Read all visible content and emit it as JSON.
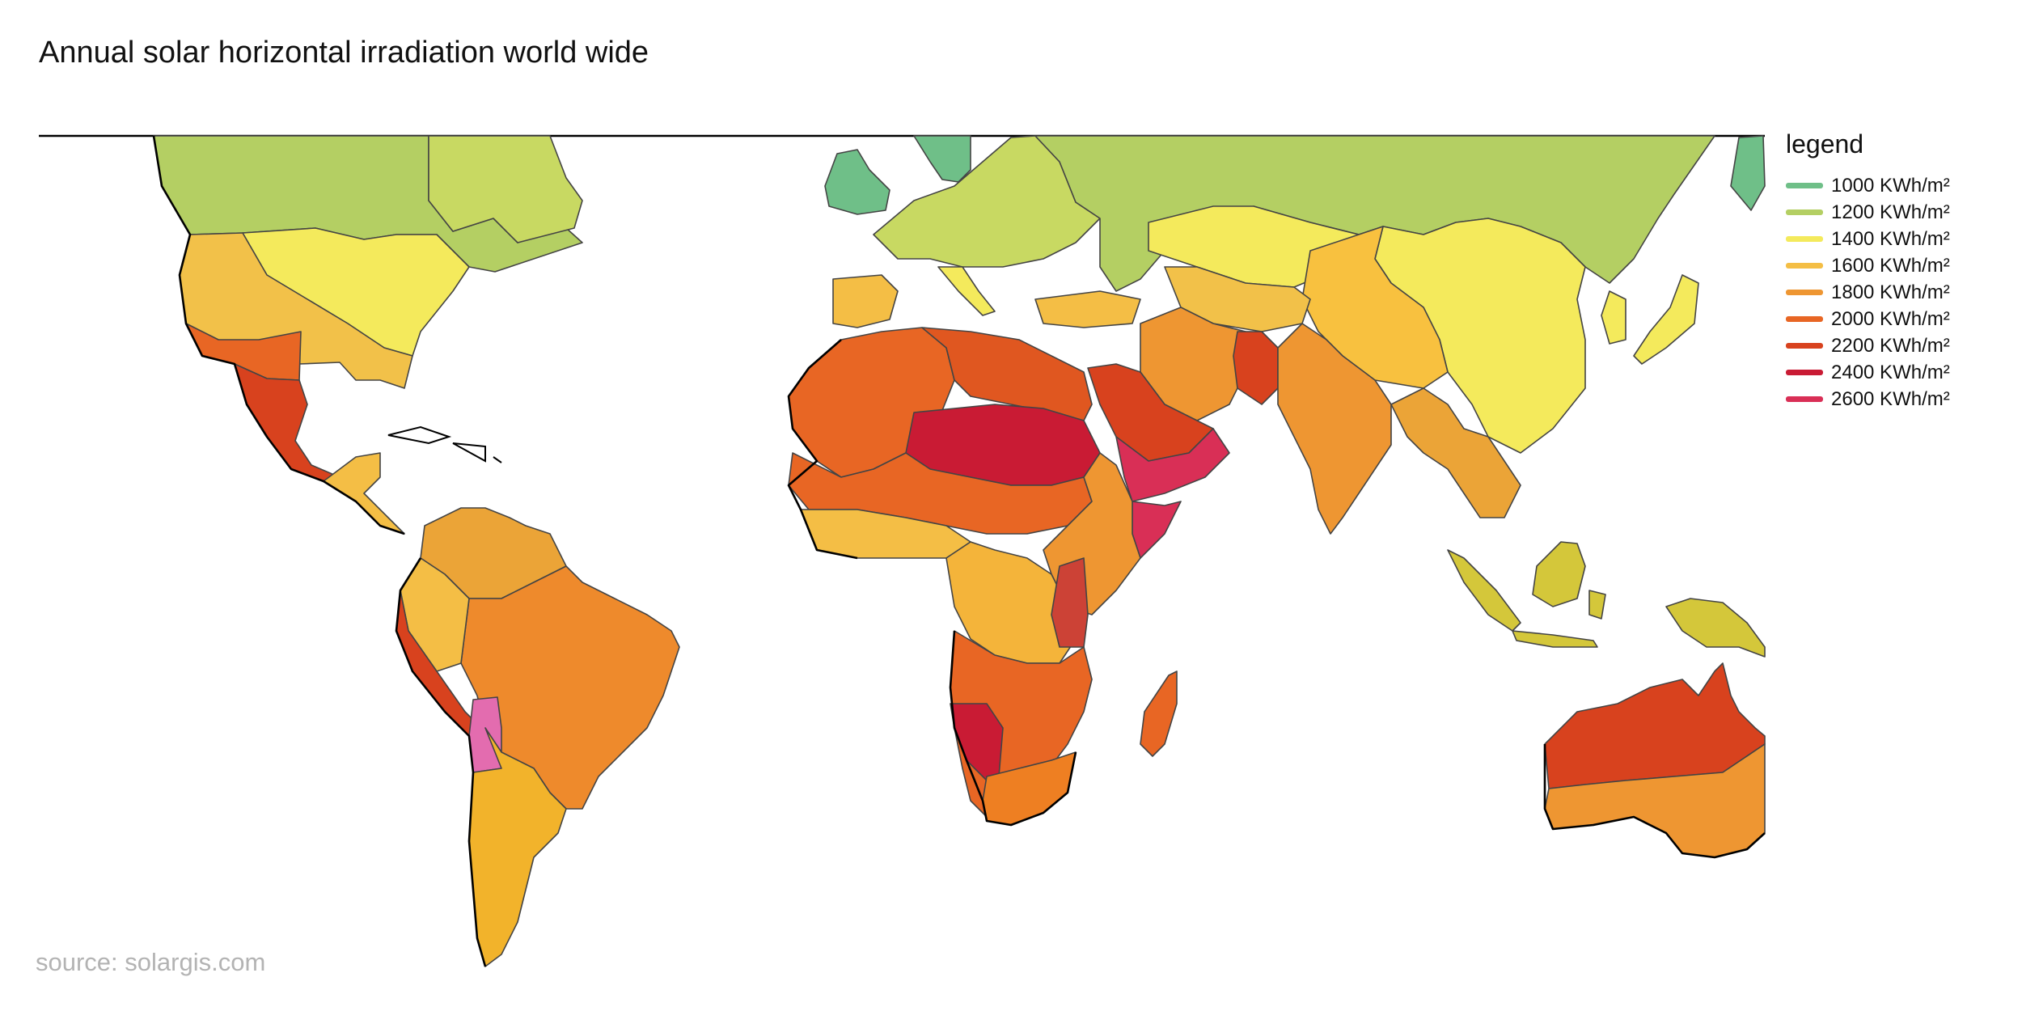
{
  "title": "Annual solar horizontal irradiation world wide",
  "legend": {
    "title": "legend",
    "items": [
      {
        "label": "1000 KWh/m²",
        "color": "#6fbf88"
      },
      {
        "label": "1200 KWh/m²",
        "color": "#b4cf63"
      },
      {
        "label": "1400 KWh/m²",
        "color": "#f4ea5c"
      },
      {
        "label": "1600 KWh/m²",
        "color": "#f4be45"
      },
      {
        "label": "1800 KWh/m²",
        "color": "#ee9632"
      },
      {
        "label": "2000 KWh/m²",
        "color": "#e86624"
      },
      {
        "label": "2200 KWh/m²",
        "color": "#d8421e"
      },
      {
        "label": "2400 KWh/m²",
        "color": "#c91b34"
      },
      {
        "label": "2600 KWh/m²",
        "color": "#d92f56"
      }
    ]
  },
  "source": "source: solargis.com",
  "regions": [
    {
      "name": "canada",
      "level": "1200 KWh/m²"
    },
    {
      "name": "usa-north",
      "level": "1400 KWh/m²"
    },
    {
      "name": "usa-south",
      "level": "1600 KWh/m²"
    },
    {
      "name": "mexico",
      "level": "2200 KWh/m²"
    },
    {
      "name": "south-america",
      "level": "1800 KWh/m²"
    },
    {
      "name": "atacama",
      "level": "2600 KWh/m²"
    },
    {
      "name": "europe",
      "level": "1200 KWh/m²"
    },
    {
      "name": "sahara",
      "level": "2400 KWh/m²"
    },
    {
      "name": "arabia",
      "level": "2200 KWh/m²"
    },
    {
      "name": "russia",
      "level": "1200 KWh/m²"
    },
    {
      "name": "central-asia",
      "level": "1400 KWh/m²"
    },
    {
      "name": "china",
      "level": "1400 KWh/m²"
    },
    {
      "name": "india",
      "level": "1800 KWh/m²"
    },
    {
      "name": "australia",
      "level": "2200 KWh/m²"
    }
  ]
}
